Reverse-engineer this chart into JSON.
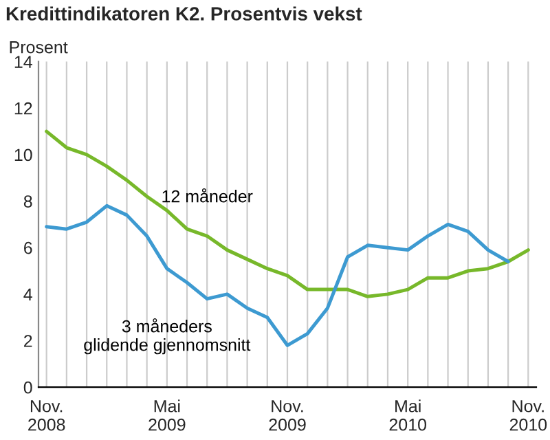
{
  "chart_data": {
    "type": "line",
    "title": "Kredittindikatoren K2. Prosentvis vekst",
    "ylabel": "Prosent",
    "categories": [
      "Nov.\n2008",
      null,
      null,
      null,
      null,
      null,
      "Mai\n2009",
      null,
      null,
      null,
      null,
      null,
      "Nov.\n2009",
      null,
      null,
      null,
      null,
      null,
      "Mai\n2010",
      null,
      null,
      null,
      null,
      null,
      "Nov.\n2010"
    ],
    "series": [
      {
        "name": "12 måneder",
        "color": "#77b82a",
        "values": [
          11.0,
          10.3,
          10.0,
          9.5,
          8.9,
          8.2,
          7.6,
          6.8,
          6.5,
          5.9,
          5.5,
          5.1,
          4.8,
          4.2,
          4.2,
          4.2,
          3.9,
          4.0,
          4.2,
          4.7,
          4.7,
          5.0,
          5.1,
          5.4,
          5.9
        ]
      },
      {
        "name": "3 måneders\nglidende gjennomsnitt",
        "color": "#3d9ad1",
        "values": [
          6.9,
          6.8,
          7.1,
          7.8,
          7.4,
          6.5,
          5.1,
          4.5,
          3.8,
          4.0,
          3.4,
          3.0,
          1.8,
          2.3,
          3.4,
          5.6,
          6.1,
          6.0,
          5.9,
          6.5,
          7.0,
          6.7,
          5.9,
          5.4,
          null
        ]
      }
    ],
    "ylim": [
      0,
      14
    ],
    "yticks": [
      0,
      2,
      4,
      6,
      8,
      10,
      12,
      14
    ],
    "grid": "x",
    "legend": false,
    "marker": "none",
    "line_style": "solid"
  }
}
